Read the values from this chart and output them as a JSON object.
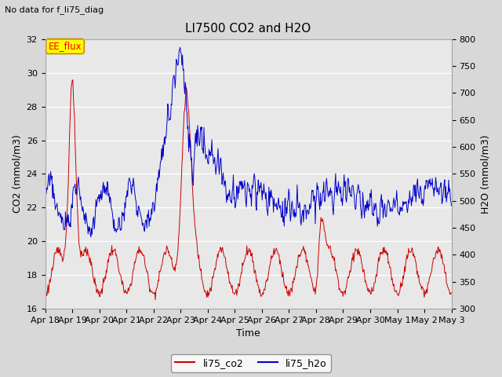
{
  "title": "LI7500 CO2 and H2O",
  "subtitle": "No data for f_li75_diag",
  "xlabel": "Time",
  "ylabel_left": "CO2 (mmol/m3)",
  "ylabel_right": "H2O (mmol/m3)",
  "ylim_left": [
    16,
    32
  ],
  "ylim_right": [
    300,
    800
  ],
  "yticks_left": [
    16,
    18,
    20,
    22,
    24,
    26,
    28,
    30,
    32
  ],
  "yticks_right": [
    300,
    350,
    400,
    450,
    500,
    550,
    600,
    650,
    700,
    750,
    800
  ],
  "xtick_labels": [
    "Apr 18",
    "Apr 19",
    "Apr 20",
    "Apr 21",
    "Apr 22",
    "Apr 23",
    "Apr 24",
    "Apr 25",
    "Apr 26",
    "Apr 27",
    "Apr 28",
    "Apr 29",
    "Apr 30",
    "May 1",
    "May 2",
    "May 3"
  ],
  "co2_color": "#cc0000",
  "h2o_color": "#0000cc",
  "bg_color": "#d8d8d8",
  "plot_bg_color": "#e8e8e8",
  "legend_label_co2": "li75_co2",
  "legend_label_h2o": "li75_h2o",
  "ee_flux_label": "EE_flux",
  "ee_flux_color": "#ffff00",
  "ee_flux_border": "#cc8800",
  "figsize": [
    6.4,
    4.8
  ],
  "dpi": 100
}
